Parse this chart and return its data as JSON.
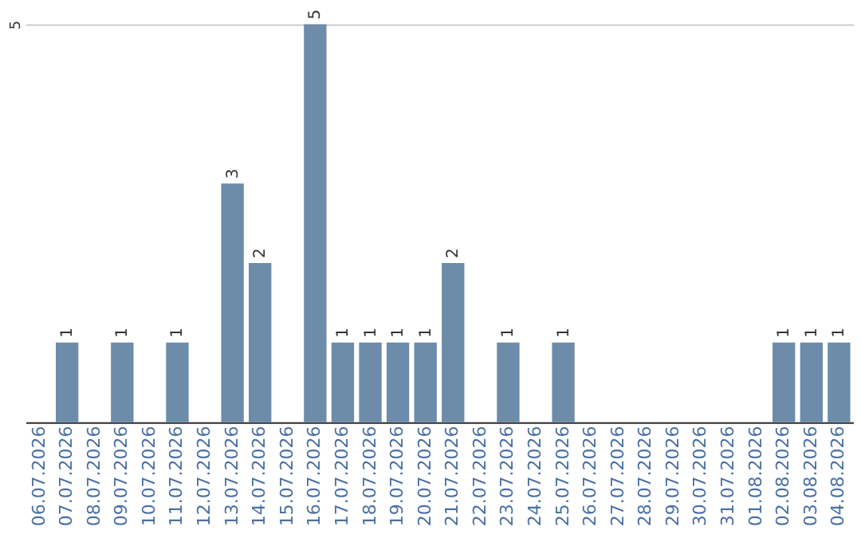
{
  "chart_data": {
    "type": "bar",
    "categories": [
      "06.07.2026",
      "07.07.2026",
      "08.07.2026",
      "09.07.2026",
      "10.07.2026",
      "11.07.2026",
      "12.07.2026",
      "13.07.2026",
      "14.07.2026",
      "15.07.2026",
      "16.07.2026",
      "17.07.2026",
      "18.07.2026",
      "19.07.2026",
      "20.07.2026",
      "21.07.2026",
      "22.07.2026",
      "23.07.2026",
      "24.07.2026",
      "25.07.2026",
      "26.07.2026",
      "27.07.2026",
      "28.07.2026",
      "29.07.2026",
      "30.07.2026",
      "31.07.2026",
      "01.08.2026",
      "02.08.2026",
      "03.08.2026",
      "04.08.2026"
    ],
    "values": [
      0,
      1,
      0,
      1,
      0,
      1,
      0,
      3,
      2,
      0,
      5,
      1,
      1,
      1,
      1,
      2,
      0,
      1,
      0,
      1,
      0,
      0,
      0,
      0,
      0,
      0,
      0,
      1,
      1,
      1
    ],
    "value_labels": [
      null,
      "1",
      null,
      "1",
      null,
      "1",
      null,
      "3",
      "2",
      null,
      "5",
      "1",
      "1",
      "1",
      "1",
      "2",
      null,
      "1",
      null,
      "1",
      null,
      null,
      null,
      null,
      null,
      null,
      null,
      "1",
      "1",
      "1"
    ],
    "color": "#6d8caa",
    "ylim": [
      0,
      5
    ],
    "yticks": [
      {
        "value": 0,
        "label": null
      },
      5
    ],
    "grid": "y"
  }
}
